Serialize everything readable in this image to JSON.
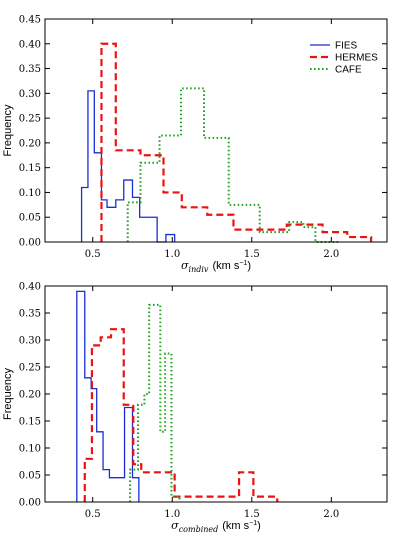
{
  "chart_data": [
    {
      "type": "histogram",
      "xlim": [
        0.2,
        2.35
      ],
      "ylim": [
        0,
        0.45
      ],
      "xticks": [
        0.5,
        1.0,
        1.5,
        2.0
      ],
      "xtick_labels": [
        "0.5",
        "1.0",
        "1.5",
        "2.0"
      ],
      "yticks": [
        0.0,
        0.05,
        0.1,
        0.15,
        0.2,
        0.25,
        0.3,
        0.35,
        0.4,
        0.45
      ],
      "ytick_labels": [
        "0.00",
        "0.05",
        "0.10",
        "0.15",
        "0.20",
        "0.25",
        "0.30",
        "0.35",
        "0.40",
        "0.45"
      ],
      "xlabel_symbol": "σ",
      "xlabel_sub": "indiv",
      "xlabel_units": "(km s",
      "xlabel_units_sup": "−1",
      "xlabel_units_end": ")",
      "ylabel": "Frequency",
      "legend_position": "top-right",
      "series": [
        {
          "name": "FIES",
          "color": "#1a2fd6",
          "style": "solid",
          "edges": [
            0.43,
            0.47,
            0.51,
            0.555,
            0.59,
            0.645,
            0.695,
            0.75,
            0.795,
            0.905,
            0.96,
            1.015
          ],
          "values": [
            0.11,
            0.305,
            0.18,
            0.085,
            0.07,
            0.085,
            0.125,
            0.09,
            0.05,
            0.0,
            0.015
          ]
        },
        {
          "name": "HERMES",
          "color": "#ee1111",
          "style": "dashed",
          "edges": [
            0.555,
            0.645,
            0.8,
            0.945,
            1.06,
            1.22,
            1.385,
            1.61,
            1.72,
            1.775,
            1.945,
            2.1,
            2.25
          ],
          "values": [
            0.4,
            0.185,
            0.175,
            0.1,
            0.07,
            0.055,
            0.025,
            0.025,
            0.035,
            0.035,
            0.02,
            0.01
          ]
        },
        {
          "name": "CAFE",
          "color": "#22a222",
          "style": "dotted",
          "edges": [
            0.72,
            0.8,
            0.92,
            1.055,
            1.2,
            1.355,
            1.55,
            1.735,
            1.825,
            1.9,
            2.05
          ],
          "values": [
            0.08,
            0.16,
            0.215,
            0.31,
            0.21,
            0.075,
            0.02,
            0.04,
            0.03,
            0.0
          ]
        }
      ]
    },
    {
      "type": "histogram",
      "xlim": [
        0.2,
        2.35
      ],
      "ylim": [
        0,
        0.4
      ],
      "xticks": [
        0.5,
        1.0,
        1.5,
        2.0
      ],
      "xtick_labels": [
        "0.5",
        "1.0",
        "1.5",
        "2.0"
      ],
      "yticks": [
        0.0,
        0.05,
        0.1,
        0.15,
        0.2,
        0.25,
        0.3,
        0.35,
        0.4
      ],
      "ytick_labels": [
        "0.00",
        "0.05",
        "0.10",
        "0.15",
        "0.20",
        "0.25",
        "0.30",
        "0.35",
        "0.40"
      ],
      "xlabel_symbol": "σ",
      "xlabel_sub": "combined",
      "xlabel_units": "(km s",
      "xlabel_units_sup": "−1",
      "xlabel_units_end": ")",
      "ylabel": "Frequency",
      "series": [
        {
          "name": "FIES",
          "color": "#1a2fd6",
          "style": "solid",
          "edges": [
            0.4,
            0.45,
            0.49,
            0.525,
            0.565,
            0.605,
            0.7,
            0.75,
            0.79
          ],
          "values": [
            0.39,
            0.23,
            0.21,
            0.13,
            0.06,
            0.045,
            0.175,
            0.045
          ]
        },
        {
          "name": "HERMES",
          "color": "#ee1111",
          "style": "dashed",
          "edges": [
            0.45,
            0.495,
            0.55,
            0.615,
            0.695,
            0.755,
            0.805,
            1.015,
            1.14,
            1.42,
            1.51,
            1.66
          ],
          "values": [
            0.08,
            0.29,
            0.305,
            0.32,
            0.18,
            0.07,
            0.055,
            0.01,
            0.01,
            0.055,
            0.01
          ]
        },
        {
          "name": "CAFE",
          "color": "#22a222",
          "style": "dotted",
          "edges": [
            0.735,
            0.785,
            0.825,
            0.855,
            0.925,
            0.955,
            0.995,
            1.045
          ],
          "values": [
            0.06,
            0.18,
            0.2,
            0.365,
            0.13,
            0.275,
            0.01
          ]
        }
      ]
    }
  ]
}
